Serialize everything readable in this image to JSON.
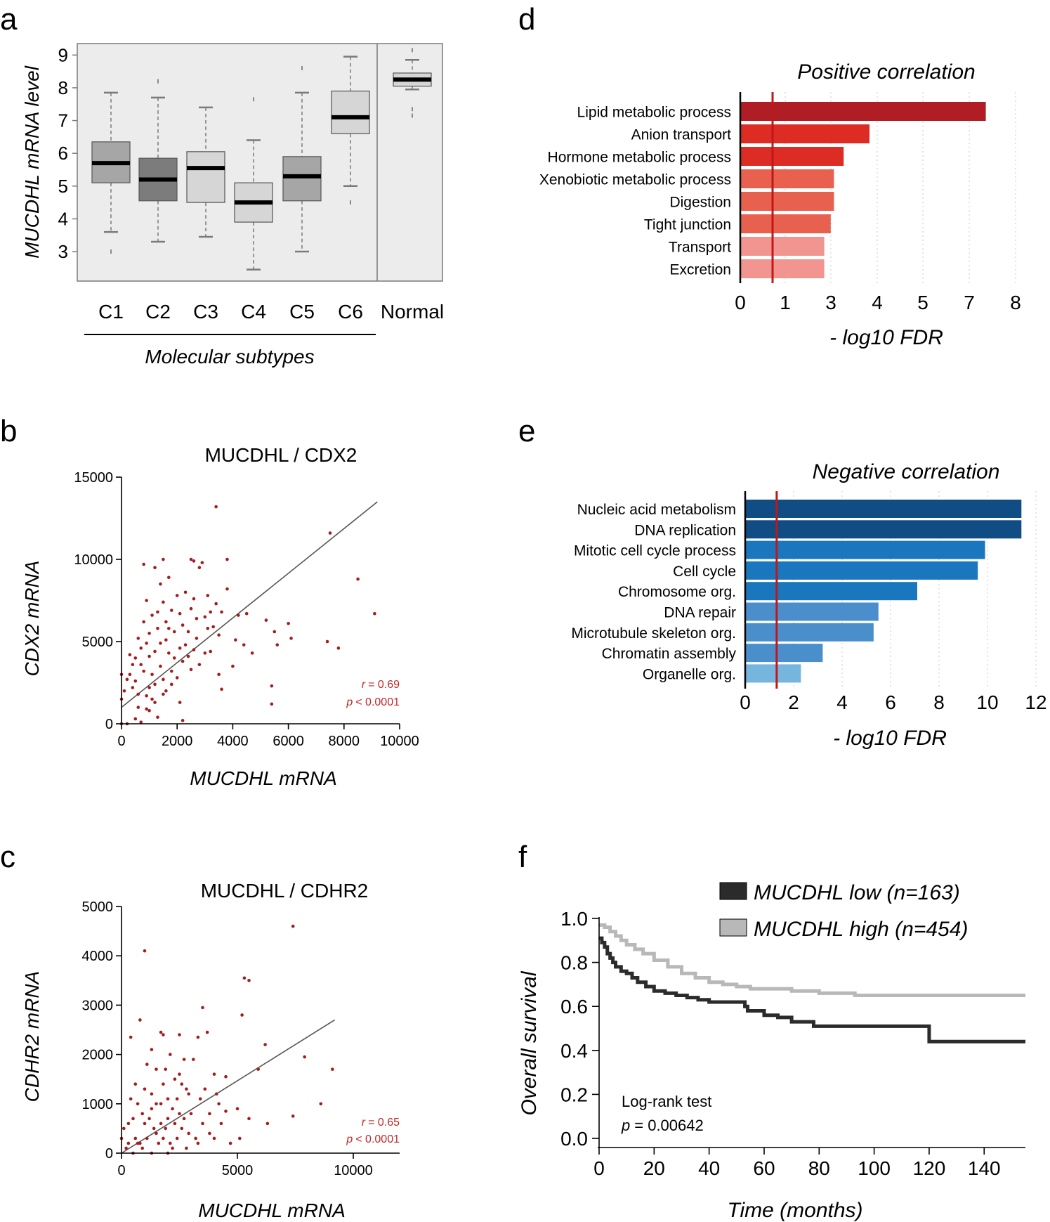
{
  "panel_letters": {
    "a": "a",
    "b": "b",
    "c": "c",
    "d": "d",
    "e": "e",
    "f": "f"
  },
  "colors": {
    "scatter_point": "#a51c1c",
    "annotation_red": "#c32727",
    "fdr_threshold": "#c01818",
    "box_dark": "#7c7c7c",
    "box_mid": "#a6a6a6",
    "box_light": "#d6d6d6",
    "survival_low": "#2b2b2b",
    "survival_high": "#b8b8b8"
  },
  "chart_data": [
    {
      "id": "a",
      "type": "box",
      "ylabel": "MUCDHL mRNA level",
      "xlabel": "Molecular subtypes",
      "categories": [
        "C1",
        "C2",
        "C3",
        "C4",
        "C5",
        "C6",
        "Normal"
      ],
      "yticks": [
        3,
        4,
        5,
        6,
        7,
        8,
        9
      ],
      "ylim": [
        2.1,
        9.35
      ],
      "boxes": [
        {
          "label": "C1",
          "min": 3.6,
          "q1": 5.1,
          "median": 5.7,
          "q3": 6.35,
          "max": 7.85,
          "outliers": [
            3.0
          ],
          "shade": "mid"
        },
        {
          "label": "C2",
          "min": 3.3,
          "q1": 4.55,
          "median": 5.2,
          "q3": 5.85,
          "max": 7.7,
          "outliers": [
            8.2
          ],
          "shade": "dark"
        },
        {
          "label": "C3",
          "min": 3.45,
          "q1": 4.5,
          "median": 5.55,
          "q3": 6.05,
          "max": 7.4,
          "outliers": [],
          "shade": "light"
        },
        {
          "label": "C4",
          "min": 2.45,
          "q1": 3.9,
          "median": 4.5,
          "q3": 5.1,
          "max": 6.4,
          "outliers": [
            7.65
          ],
          "shade": "light"
        },
        {
          "label": "C5",
          "min": 3.0,
          "q1": 4.55,
          "median": 5.3,
          "q3": 5.9,
          "max": 7.85,
          "outliers": [
            8.6
          ],
          "shade": "mid"
        },
        {
          "label": "C6",
          "min": 5.0,
          "q1": 6.6,
          "median": 7.1,
          "q3": 7.9,
          "max": 8.95,
          "outliers": [
            4.5
          ],
          "shade": "light"
        },
        {
          "label": "Normal",
          "min": 7.95,
          "q1": 8.05,
          "median": 8.25,
          "q3": 8.45,
          "max": 8.85,
          "outliers": [
            9.15,
            7.35,
            7.15
          ],
          "shade": "light"
        }
      ]
    },
    {
      "id": "b",
      "type": "scatter",
      "title": "MUCDHL / CDX2",
      "xlabel": "MUCDHL mRNA",
      "ylabel": "CDX2 mRNA",
      "xlim": [
        0,
        10000
      ],
      "ylim": [
        0,
        15000
      ],
      "xticks": [
        0,
        2000,
        4000,
        6000,
        8000,
        10000
      ],
      "yticks": [
        0,
        5000,
        10000,
        15000
      ],
      "r_label": "r",
      "r_value": "= 0.69",
      "p_label": "p",
      "p_value": "< 0.0001",
      "fit": {
        "x": [
          0,
          9200
        ],
        "y": [
          1000,
          13500
        ]
      },
      "points": [
        [
          3400,
          13200
        ],
        [
          7500,
          11600
        ],
        [
          8500,
          8800
        ],
        [
          9100,
          6700
        ],
        [
          7400,
          5000
        ],
        [
          7800,
          4600
        ],
        [
          5400,
          2300
        ],
        [
          5400,
          1200
        ],
        [
          4500,
          6700
        ],
        [
          5200,
          6300
        ],
        [
          5500,
          5600
        ],
        [
          5600,
          4800
        ],
        [
          6000,
          6100
        ],
        [
          6100,
          5200
        ],
        [
          3800,
          8200
        ],
        [
          3800,
          10000
        ],
        [
          3500,
          3000
        ],
        [
          3600,
          2100
        ],
        [
          2800,
          9500
        ],
        [
          2500,
          10000
        ],
        [
          2600,
          9900
        ],
        [
          2900,
          9800
        ],
        [
          1500,
          10000
        ],
        [
          800,
          9700
        ],
        [
          1200,
          9500
        ],
        [
          1400,
          8500
        ],
        [
          1700,
          8900
        ],
        [
          2000,
          7800
        ],
        [
          2300,
          8000
        ],
        [
          3100,
          7800
        ],
        [
          3400,
          7300
        ],
        [
          3600,
          6800
        ],
        [
          4200,
          6600
        ],
        [
          4100,
          5100
        ],
        [
          4400,
          4800
        ],
        [
          3000,
          6500
        ],
        [
          3100,
          5800
        ],
        [
          2700,
          6400
        ],
        [
          2500,
          7000
        ],
        [
          2200,
          6000
        ],
        [
          1900,
          5600
        ],
        [
          1600,
          6200
        ],
        [
          1300,
          5800
        ],
        [
          1000,
          5500
        ],
        [
          900,
          4900
        ],
        [
          700,
          4600
        ],
        [
          600,
          5200
        ],
        [
          500,
          4000
        ],
        [
          400,
          3600
        ],
        [
          300,
          3000
        ],
        [
          200,
          2700
        ],
        [
          100,
          2000
        ],
        [
          0,
          3000
        ],
        [
          0,
          1500
        ],
        [
          0,
          0
        ],
        [
          200,
          0
        ],
        [
          500,
          300
        ],
        [
          700,
          100
        ],
        [
          900,
          900
        ],
        [
          1200,
          1300
        ],
        [
          1500,
          1800
        ],
        [
          1800,
          2400
        ],
        [
          1000,
          2200
        ],
        [
          800,
          3200
        ],
        [
          1400,
          3500
        ],
        [
          1700,
          4300
        ],
        [
          2100,
          4600
        ],
        [
          2400,
          4100
        ],
        [
          2800,
          3600
        ],
        [
          2000,
          2800
        ],
        [
          1600,
          2000
        ],
        [
          1100,
          1500
        ],
        [
          600,
          1000
        ],
        [
          1300,
          400
        ],
        [
          2200,
          200
        ],
        [
          2300,
          4800
        ],
        [
          2700,
          5200
        ],
        [
          3200,
          4400
        ],
        [
          3300,
          5900
        ],
        [
          2600,
          7600
        ],
        [
          1800,
          6900
        ],
        [
          1500,
          7400
        ],
        [
          1100,
          6600
        ],
        [
          900,
          7500
        ],
        [
          800,
          6200
        ],
        [
          1200,
          4400
        ],
        [
          1600,
          5100
        ],
        [
          1900,
          4000
        ],
        [
          2200,
          3800
        ],
        [
          2500,
          3300
        ],
        [
          300,
          4200
        ],
        [
          400,
          2200
        ],
        [
          600,
          1800
        ],
        [
          1000,
          800
        ],
        [
          1500,
          2700
        ],
        [
          1700,
          5800
        ],
        [
          2100,
          6700
        ],
        [
          2400,
          5600
        ],
        [
          3000,
          4300
        ],
        [
          3500,
          5400
        ],
        [
          4000,
          3500
        ],
        [
          4700,
          4300
        ],
        [
          1300,
          6800
        ],
        [
          1000,
          4100
        ],
        [
          700,
          3600
        ],
        [
          1800,
          3200
        ],
        [
          2100,
          1300
        ],
        [
          2600,
          4500
        ],
        [
          3200,
          6800
        ],
        [
          1400,
          4900
        ],
        [
          1100,
          3000
        ],
        [
          500,
          2600
        ],
        [
          900,
          1700
        ],
        [
          1200,
          2400
        ]
      ]
    },
    {
      "id": "c",
      "type": "scatter",
      "title": "MUCDHL / CDHR2",
      "xlabel": "MUCDHL mRNA",
      "ylabel": "CDHR2 mRNA",
      "xlim": [
        0,
        12000
      ],
      "ylim": [
        0,
        5000
      ],
      "xticks": [
        0,
        5000,
        10000
      ],
      "yticks": [
        0,
        1000,
        2000,
        3000,
        4000,
        5000
      ],
      "r_label": "r",
      "r_value": "= 0.65",
      "p_label": "p",
      "p_value": "< 0.0001",
      "fit": {
        "x": [
          0,
          9200
        ],
        "y": [
          0,
          2700
        ]
      },
      "points": [
        [
          7400,
          4600
        ],
        [
          1000,
          4100
        ],
        [
          5300,
          3550
        ],
        [
          5500,
          3500
        ],
        [
          3500,
          2950
        ],
        [
          5200,
          2800
        ],
        [
          800,
          2700
        ],
        [
          1700,
          2450
        ],
        [
          1800,
          2400
        ],
        [
          3700,
          2450
        ],
        [
          3300,
          2350
        ],
        [
          2500,
          2400
        ],
        [
          6200,
          2200
        ],
        [
          400,
          2350
        ],
        [
          7900,
          1950
        ],
        [
          9100,
          1700
        ],
        [
          4500,
          1550
        ],
        [
          1300,
          2100
        ],
        [
          2700,
          1900
        ],
        [
          2100,
          2000
        ],
        [
          3100,
          1900
        ],
        [
          1500,
          1700
        ],
        [
          4000,
          1600
        ],
        [
          5900,
          1700
        ],
        [
          2300,
          1500
        ],
        [
          2600,
          1400
        ],
        [
          1800,
          1400
        ],
        [
          1000,
          1300
        ],
        [
          600,
          1400
        ],
        [
          2900,
          1200
        ],
        [
          3400,
          1100
        ],
        [
          4200,
          1000
        ],
        [
          5000,
          900
        ],
        [
          8600,
          1000
        ],
        [
          7400,
          750
        ],
        [
          5500,
          700
        ],
        [
          4500,
          850
        ],
        [
          3800,
          800
        ],
        [
          2200,
          900
        ],
        [
          1700,
          1000
        ],
        [
          1300,
          900
        ],
        [
          900,
          800
        ],
        [
          500,
          700
        ],
        [
          300,
          600
        ],
        [
          100,
          500
        ],
        [
          0,
          300
        ],
        [
          200,
          100
        ],
        [
          500,
          0
        ],
        [
          800,
          200
        ],
        [
          1100,
          300
        ],
        [
          1400,
          500
        ],
        [
          1700,
          600
        ],
        [
          2000,
          700
        ],
        [
          2300,
          600
        ],
        [
          2600,
          500
        ],
        [
          2900,
          400
        ],
        [
          3200,
          300
        ],
        [
          3500,
          600
        ],
        [
          4000,
          300
        ],
        [
          4700,
          200
        ],
        [
          1200,
          700
        ],
        [
          1500,
          400
        ],
        [
          1800,
          300
        ],
        [
          2100,
          200
        ],
        [
          2400,
          300
        ],
        [
          2700,
          700
        ],
        [
          3000,
          800
        ],
        [
          900,
          100
        ],
        [
          600,
          300
        ],
        [
          300,
          200
        ],
        [
          1900,
          500
        ],
        [
          2500,
          800
        ],
        [
          1000,
          600
        ],
        [
          1600,
          200
        ],
        [
          2200,
          100
        ],
        [
          2800,
          100
        ],
        [
          3300,
          200
        ],
        [
          3800,
          400
        ],
        [
          4300,
          600
        ],
        [
          5100,
          300
        ],
        [
          1300,
          1200
        ],
        [
          2000,
          1100
        ],
        [
          2400,
          1100
        ],
        [
          2800,
          1300
        ],
        [
          700,
          1000
        ],
        [
          400,
          1100
        ],
        [
          1500,
          1000
        ],
        [
          3600,
          1300
        ],
        [
          4100,
          1200
        ],
        [
          1100,
          1800
        ],
        [
          1900,
          1700
        ],
        [
          2500,
          1600
        ],
        [
          700,
          200
        ],
        [
          1300,
          0
        ],
        [
          2000,
          0
        ],
        [
          6300,
          600
        ]
      ]
    },
    {
      "id": "d",
      "type": "bar",
      "orientation": "horizontal",
      "title": "Positive correlation",
      "xlabel": "- log10 FDR",
      "xticks": [
        0,
        1,
        3,
        4,
        5,
        7,
        8
      ],
      "threshold": 1,
      "categories": [
        "Lipid metabolic process",
        "Anion transport",
        "Hormone metabolic process",
        "Xenobiotic metabolic process",
        "Digestion",
        "Tight junction",
        "Transport",
        "Excretion"
      ],
      "values": [
        7.6,
        4.0,
        3.2,
        2.9,
        2.9,
        2.8,
        2.6,
        2.6
      ],
      "colors": [
        "#b11d25",
        "#dc2c23",
        "#dc2c23",
        "#e8604e",
        "#e8604e",
        "#e8604e",
        "#f29591",
        "#f29591"
      ]
    },
    {
      "id": "e",
      "type": "bar",
      "orientation": "horizontal",
      "title": "Negative correlation",
      "xlabel": "- log10 FDR",
      "xticks": [
        0,
        2,
        4,
        6,
        8,
        10,
        12
      ],
      "threshold": 1.3,
      "categories": [
        "Nucleic acid metabolism",
        "DNA replication",
        "Mitotic cell cycle process",
        "Cell cycle",
        "Chromosome org.",
        "DNA repair",
        "Microtubule skeleton org.",
        "Chromatin assembly",
        "Organelle org."
      ],
      "values": [
        11.4,
        11.4,
        9.9,
        9.6,
        7.1,
        5.5,
        5.3,
        3.2,
        2.3
      ],
      "colors": [
        "#0f4d84",
        "#0f4d84",
        "#1a76bd",
        "#1a76bd",
        "#1a76bd",
        "#4a8fcc",
        "#4a8fcc",
        "#4a8fcc",
        "#76b6de"
      ]
    },
    {
      "id": "f",
      "type": "line",
      "subtype": "kaplan-meier",
      "xlabel": "Time (months)",
      "ylabel": "Overall survival",
      "xlim": [
        0,
        155
      ],
      "ylim": [
        0,
        1
      ],
      "xticks": [
        0,
        20,
        40,
        60,
        80,
        100,
        120,
        140
      ],
      "yticks": [
        "0.0",
        "0.2",
        "0.4",
        "0.6",
        "0.8",
        "1.0"
      ],
      "annotation_line1": "Log-rank test",
      "annotation_p": "p",
      "annotation_value": "= 0.00642",
      "series": [
        {
          "name": "MUCDHL low (n=163)",
          "color": "#2b2b2b",
          "x": [
            0,
            1,
            2,
            3,
            4,
            5,
            6,
            8,
            10,
            12,
            14,
            17,
            20,
            24,
            28,
            32,
            36,
            40,
            45,
            50,
            53,
            54,
            60,
            65,
            70,
            78,
            85,
            100,
            110,
            119,
            120,
            155
          ],
          "y": [
            0.91,
            0.89,
            0.87,
            0.84,
            0.82,
            0.8,
            0.78,
            0.76,
            0.75,
            0.73,
            0.71,
            0.69,
            0.67,
            0.66,
            0.65,
            0.64,
            0.63,
            0.62,
            0.62,
            0.62,
            0.6,
            0.58,
            0.56,
            0.55,
            0.53,
            0.51,
            0.51,
            0.51,
            0.51,
            0.51,
            0.44,
            0.44
          ]
        },
        {
          "name": "MUCDHL high (n=454)",
          "color": "#b8b8b8",
          "x": [
            0,
            2,
            4,
            6,
            8,
            10,
            13,
            16,
            20,
            25,
            30,
            35,
            40,
            45,
            50,
            55,
            60,
            70,
            80,
            90,
            93,
            100,
            120,
            155
          ],
          "y": [
            0.97,
            0.96,
            0.94,
            0.92,
            0.9,
            0.88,
            0.86,
            0.84,
            0.81,
            0.78,
            0.75,
            0.73,
            0.71,
            0.7,
            0.69,
            0.68,
            0.68,
            0.67,
            0.66,
            0.66,
            0.65,
            0.65,
            0.65,
            0.65
          ]
        }
      ]
    }
  ]
}
